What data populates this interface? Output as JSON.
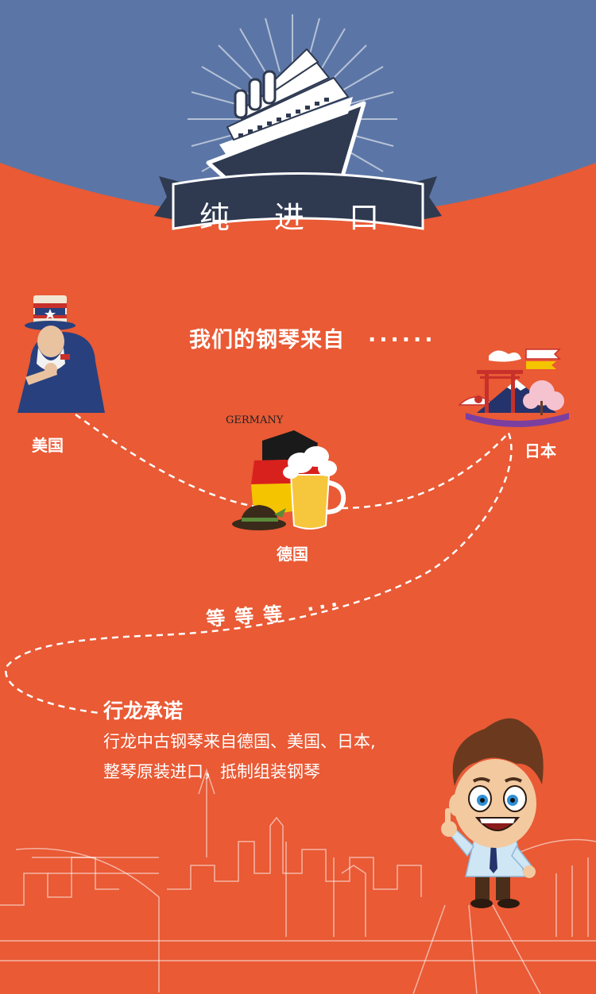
{
  "header": {
    "banner_title": "纯 进 口"
  },
  "subtitle": {
    "text": "我们的钢琴来自",
    "dots": "......"
  },
  "countries": {
    "usa": "美国",
    "japan": "日本",
    "germany": "德国",
    "germany_caption": "GERMANY"
  },
  "etc": {
    "text": "等等等",
    "dots": "..."
  },
  "promise": {
    "title": "行龙承诺",
    "line1": "行龙中古钢琴来自德国、美国、日本,",
    "line2": "整琴原装进口，抵制组装钢琴"
  },
  "colors": {
    "header_blue": "#5b76a6",
    "body_orange": "#e95a35",
    "banner_dark": "#2f3a51",
    "german_black": "#1a1a1a",
    "german_red": "#d8211d",
    "german_gold": "#f5c400"
  }
}
